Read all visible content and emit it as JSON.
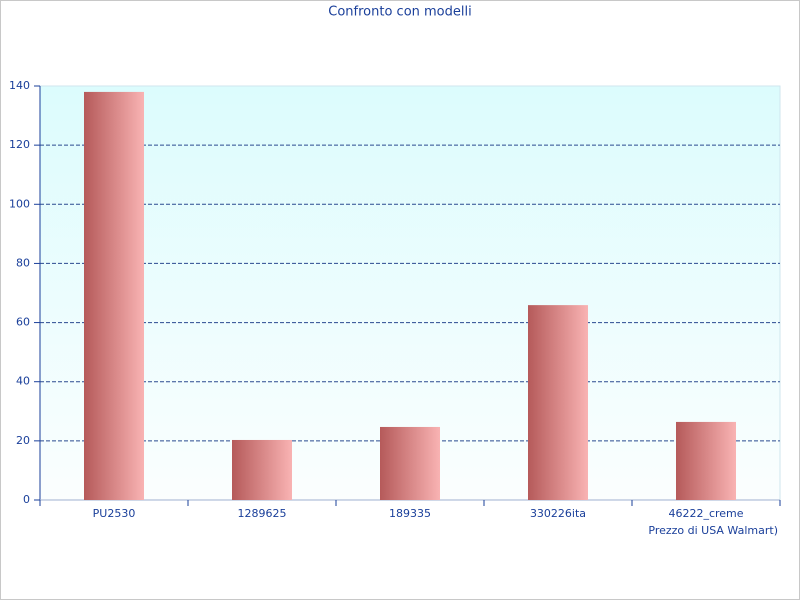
{
  "chart_data": {
    "type": "bar",
    "title": "Confronto con modelli",
    "x_label": "Prezzo di USA Walmart)",
    "categories": [
      "PU2530",
      "1289625",
      "189335",
      "330226ita",
      "46222_creme"
    ],
    "values": [
      138,
      20.3,
      24.7,
      65.9,
      26.4
    ],
    "color": "#f9b3b3",
    "ylim": [
      0,
      140
    ],
    "yticks": [
      0,
      20,
      40,
      60,
      80,
      100,
      120,
      140
    ],
    "grid": true
  }
}
